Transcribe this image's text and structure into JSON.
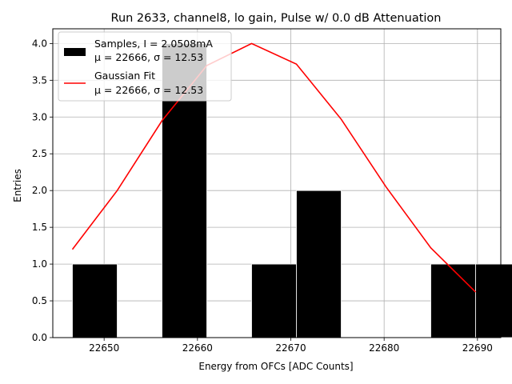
{
  "chart_data": {
    "type": "bar",
    "title": "Run 2633, channel8, lo gain, Pulse w/ 0.0 dB Attenuation",
    "xlabel": "Energy from OFCs [ADC Counts]",
    "ylabel": "Entries",
    "xlim": [
      22644.5,
      22692.5
    ],
    "ylim": [
      0,
      4.2
    ],
    "xticks": [
      22650,
      22660,
      22670,
      22680,
      22690
    ],
    "yticks": [
      0.0,
      0.5,
      1.0,
      1.5,
      2.0,
      2.5,
      3.0,
      3.5,
      4.0
    ],
    "xtick_labels": [
      "22650",
      "22660",
      "22670",
      "22680",
      "22690"
    ],
    "ytick_labels": [
      "0.0",
      "0.5",
      "1.0",
      "1.5",
      "2.0",
      "2.5",
      "3.0",
      "3.5",
      "4.0"
    ],
    "grid": true,
    "legend_position": "top-left",
    "series": [
      {
        "name": "Samples, I = 2.0508mA",
        "stats": "μ = 22666, σ = 12.53",
        "kind": "histogram",
        "color": "#000000",
        "bins": [
          {
            "x0": 22646.6,
            "x1": 22651.4,
            "value": 1
          },
          {
            "x0": 22651.4,
            "x1": 22656.2,
            "value": 0
          },
          {
            "x0": 22656.2,
            "x1": 22661.0,
            "value": 4
          },
          {
            "x0": 22661.0,
            "x1": 22665.8,
            "value": 0
          },
          {
            "x0": 22665.8,
            "x1": 22670.6,
            "value": 1
          },
          {
            "x0": 22670.6,
            "x1": 22675.4,
            "value": 2
          },
          {
            "x0": 22675.4,
            "x1": 22680.2,
            "value": 0
          },
          {
            "x0": 22680.2,
            "x1": 22685.0,
            "value": 0
          },
          {
            "x0": 22685.0,
            "x1": 22689.8,
            "value": 1
          },
          {
            "x0": 22689.8,
            "x1": 22694.6,
            "value": 1
          }
        ]
      },
      {
        "name": "Gaussian Fit",
        "stats": "μ = 22666, σ = 12.53",
        "kind": "line",
        "color": "#ff0000",
        "points": [
          [
            22646.6,
            1.2
          ],
          [
            22651.4,
            2.0
          ],
          [
            22656.2,
            2.95
          ],
          [
            22661.0,
            3.7
          ],
          [
            22665.8,
            4.0
          ],
          [
            22670.6,
            3.72
          ],
          [
            22675.4,
            2.97
          ],
          [
            22680.2,
            2.05
          ],
          [
            22685.0,
            1.22
          ],
          [
            22689.8,
            0.62
          ]
        ]
      }
    ]
  }
}
